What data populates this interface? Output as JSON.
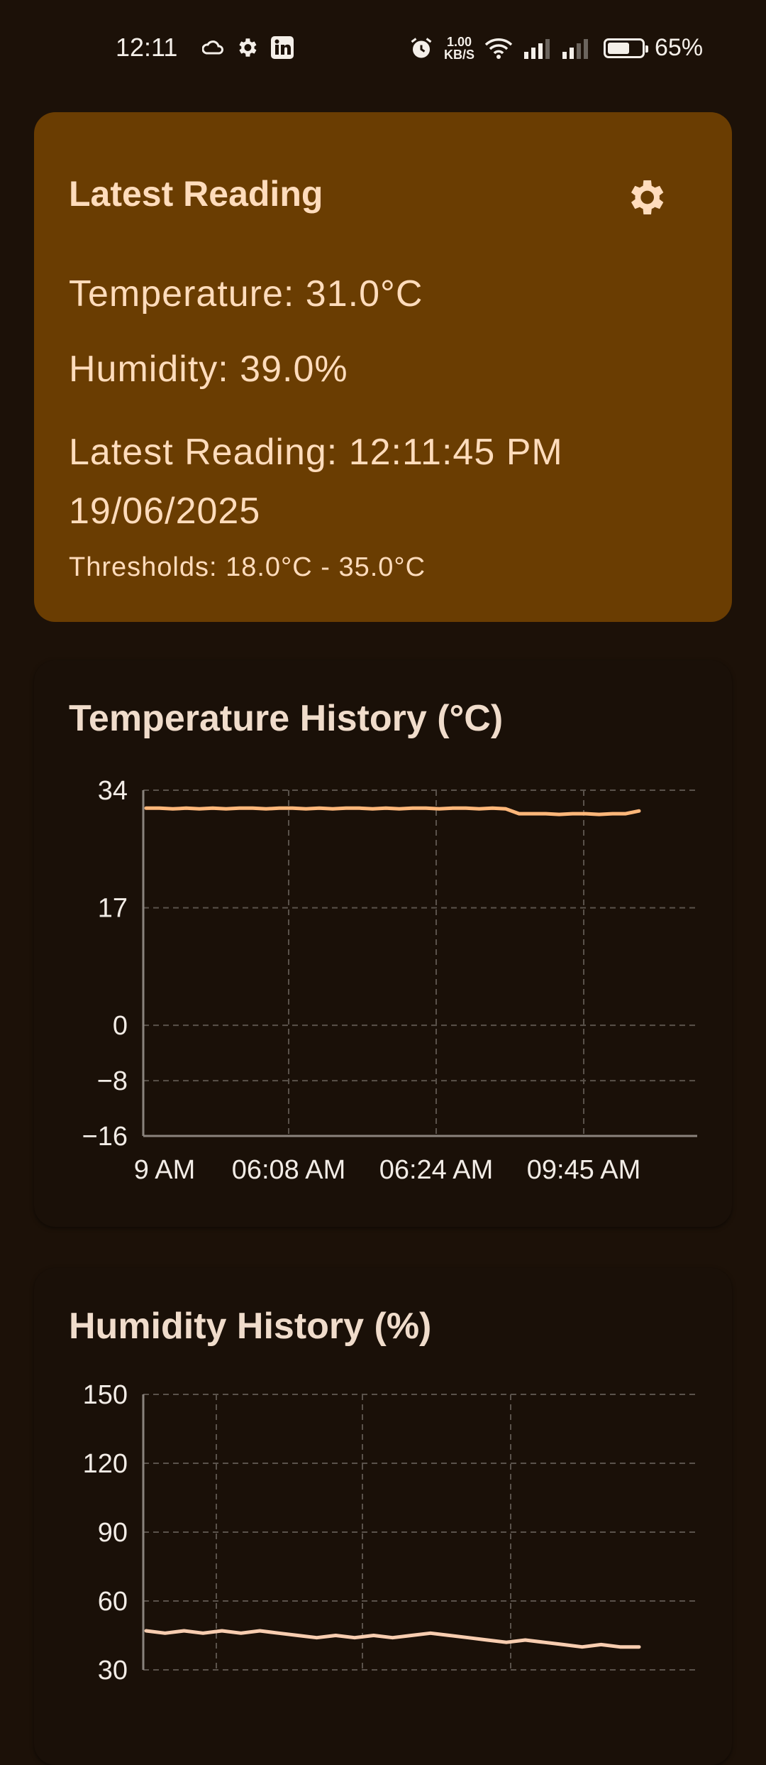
{
  "status_bar": {
    "time": "12:11",
    "left_icons": [
      "cloud-icon",
      "gear-icon",
      "linkedin-icon"
    ],
    "net_speed_value": "1.00",
    "net_speed_unit": "KB/S",
    "battery_percent": "65%",
    "battery_level": 0.65
  },
  "latest": {
    "title": "Latest Reading",
    "temperature": "Temperature: 31.0°C",
    "humidity": "Humidity: 39.0%",
    "reading_time": "Latest Reading: 12:11:45 PM 19/06/2025",
    "thresholds": "Thresholds: 18.0°C - 35.0°C"
  },
  "temp_chart": {
    "title": "Temperature History (°C)"
  },
  "hum_chart": {
    "title": "Humidity History (%)"
  },
  "chart_data": [
    {
      "type": "line",
      "title": "Temperature History (°C)",
      "x_tick_labels": [
        "9 AM",
        "06:08 AM",
        "06:24 AM",
        "09:45 AM"
      ],
      "y_ticks": [
        34,
        17,
        0,
        -8,
        -16
      ],
      "ylim": [
        -16,
        34
      ],
      "grid": true,
      "color": "#ffb77a",
      "series": [
        {
          "values": [
            31.4,
            31.4,
            31.3,
            31.4,
            31.3,
            31.4,
            31.3,
            31.4,
            31.4,
            31.3,
            31.4,
            31.4,
            31.3,
            31.4,
            31.3,
            31.4,
            31.4,
            31.3,
            31.4,
            31.3,
            31.4,
            31.4,
            31.3,
            31.4,
            31.4,
            31.3,
            31.4,
            31.3,
            30.6,
            30.6,
            30.6,
            30.5,
            30.6,
            30.6,
            30.5,
            30.6,
            30.6,
            31.0
          ]
        }
      ]
    },
    {
      "type": "line",
      "title": "Humidity History (%)",
      "y_ticks": [
        150,
        120,
        90,
        60,
        30
      ],
      "ylim": [
        30,
        150
      ],
      "grid": true,
      "color": "#f8cdb0",
      "series": [
        {
          "values": [
            47,
            46,
            47,
            46,
            47,
            46,
            47,
            46,
            45,
            44,
            45,
            44,
            45,
            44,
            45,
            46,
            45,
            44,
            43,
            42,
            43,
            42,
            41,
            40,
            41,
            40,
            40
          ]
        }
      ]
    }
  ]
}
